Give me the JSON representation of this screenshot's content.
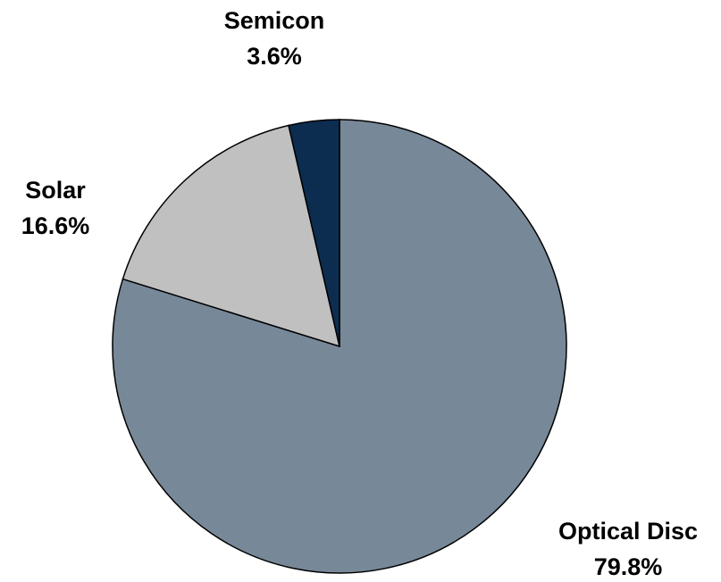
{
  "chart_data": {
    "type": "pie",
    "categories": [
      "Optical Disc",
      "Solar",
      "Semicon"
    ],
    "values": [
      79.8,
      16.6,
      3.6
    ],
    "value_labels": [
      "79.8%",
      "16.6%",
      "3.6%"
    ],
    "colors": [
      "#778899",
      "#c0c0c0",
      "#0c2d50"
    ]
  }
}
